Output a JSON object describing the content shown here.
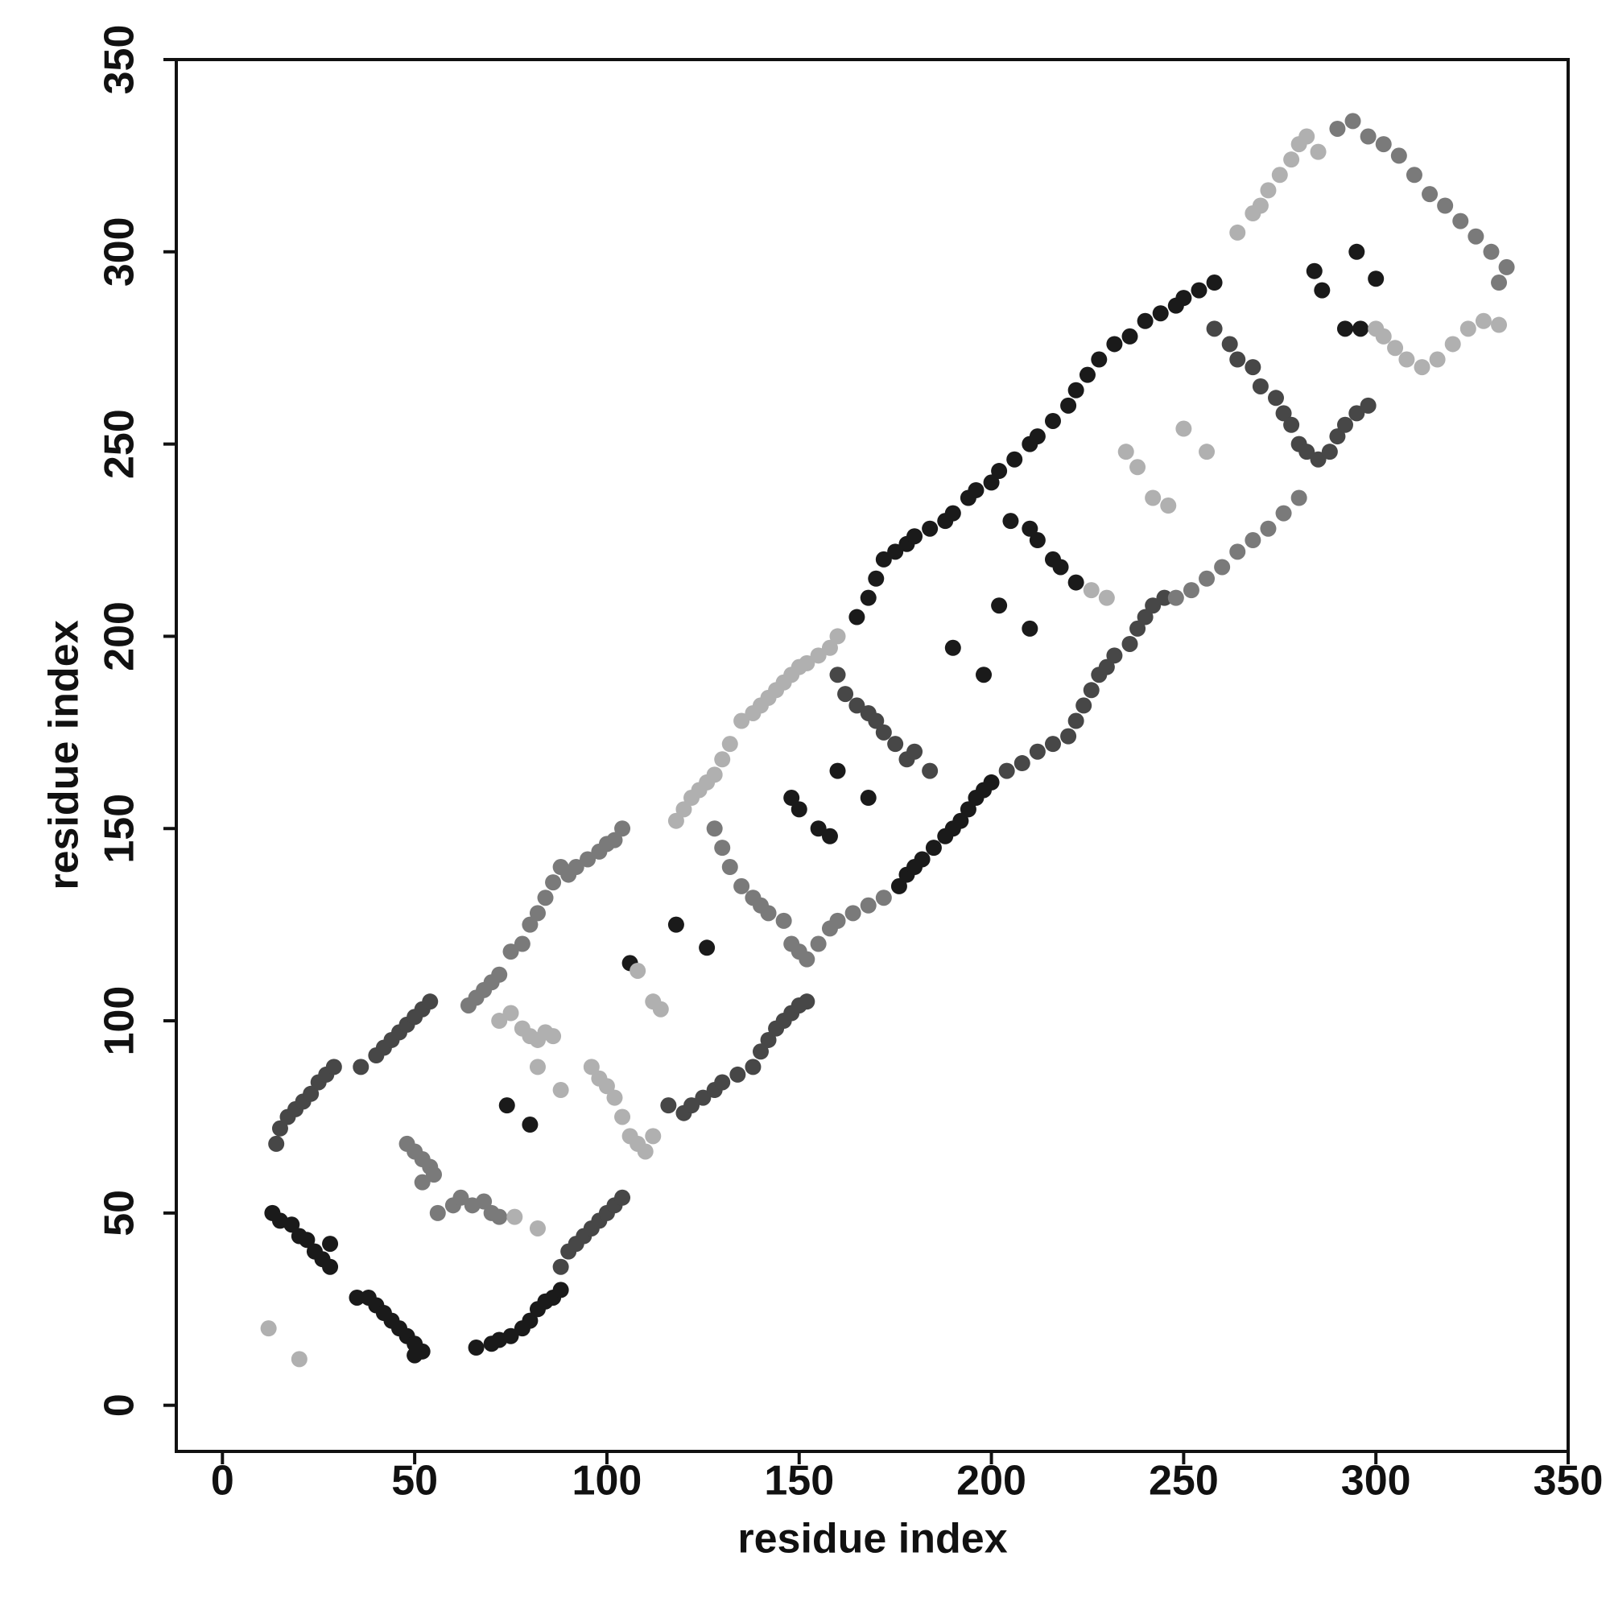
{
  "chart_data": {
    "type": "scatter",
    "xlabel": "residue index",
    "ylabel": "residue index",
    "xlim": [
      -12,
      350
    ],
    "ylim": [
      -12,
      350
    ],
    "xticks": [
      0,
      50,
      100,
      150,
      200,
      250,
      300,
      350
    ],
    "yticks": [
      0,
      50,
      100,
      150,
      200,
      250,
      300,
      350
    ],
    "series": [
      {
        "color": "#1a1a1a",
        "x": [
          13,
          15,
          18,
          20,
          22,
          24,
          26,
          28,
          28,
          35,
          38,
          40,
          42,
          44,
          46,
          48,
          50,
          52,
          50,
          66,
          70,
          72,
          75,
          78,
          80,
          82,
          84,
          86,
          88,
          74,
          80,
          106,
          118,
          126,
          148,
          150,
          155,
          158,
          160,
          168,
          190,
          198,
          202,
          210,
          284,
          286,
          295,
          300,
          292,
          296,
          205,
          210,
          212,
          216,
          218,
          222,
          176,
          178,
          180,
          182,
          185,
          188,
          190,
          192,
          194,
          196,
          198,
          200,
          165,
          168,
          170,
          172,
          175,
          178,
          180,
          184,
          188,
          190,
          194,
          196,
          200,
          202,
          206,
          210,
          212,
          216,
          220,
          222,
          225,
          228,
          232,
          236,
          240,
          244,
          248,
          250,
          254,
          258
        ],
        "values": [
          50,
          48,
          47,
          44,
          43,
          40,
          38,
          36,
          42,
          28,
          28,
          26,
          24,
          22,
          20,
          18,
          16,
          14,
          13,
          15,
          16,
          17,
          18,
          20,
          22,
          25,
          27,
          28,
          30,
          78,
          73,
          115,
          125,
          119,
          158,
          155,
          150,
          148,
          165,
          158,
          197,
          190,
          208,
          202,
          295,
          290,
          300,
          293,
          280,
          280,
          230,
          228,
          225,
          220,
          218,
          214,
          135,
          138,
          140,
          142,
          145,
          148,
          150,
          152,
          155,
          158,
          160,
          162,
          205,
          210,
          215,
          220,
          222,
          224,
          226,
          228,
          230,
          232,
          236,
          238,
          240,
          243,
          246,
          250,
          252,
          256,
          260,
          264,
          268,
          272,
          276,
          278,
          282,
          284,
          286,
          288,
          290,
          292
        ]
      },
      {
        "color": "#474747",
        "x": [
          14,
          15,
          17,
          19,
          21,
          23,
          25,
          27,
          29,
          36,
          40,
          42,
          44,
          46,
          48,
          50,
          52,
          54,
          88,
          90,
          92,
          94,
          96,
          98,
          100,
          102,
          104,
          116,
          120,
          122,
          125,
          128,
          130,
          134,
          138,
          140,
          142,
          144,
          146,
          148,
          150,
          152,
          160,
          162,
          165,
          168,
          170,
          172,
          175,
          178,
          180,
          184,
          258,
          262,
          264,
          268,
          270,
          274,
          276,
          278,
          280,
          282,
          285,
          288,
          290,
          292,
          295,
          298,
          204,
          208,
          212,
          216,
          220,
          222,
          224,
          226,
          228,
          230,
          232,
          236,
          238,
          240,
          242,
          245
        ],
        "values": [
          68,
          72,
          75,
          77,
          79,
          81,
          84,
          86,
          88,
          88,
          91,
          93,
          95,
          97,
          99,
          101,
          103,
          105,
          36,
          40,
          42,
          44,
          46,
          48,
          50,
          52,
          54,
          78,
          76,
          78,
          80,
          82,
          84,
          86,
          88,
          92,
          95,
          98,
          100,
          102,
          104,
          105,
          190,
          185,
          182,
          180,
          178,
          175,
          172,
          168,
          170,
          165,
          280,
          276,
          272,
          270,
          265,
          262,
          258,
          255,
          250,
          248,
          246,
          248,
          252,
          255,
          258,
          260,
          165,
          167,
          170,
          172,
          174,
          178,
          182,
          186,
          190,
          192,
          195,
          198,
          202,
          205,
          208,
          210
        ]
      },
      {
        "color": "#7a7a7a",
        "x": [
          48,
          50,
          52,
          54,
          52,
          55,
          56,
          60,
          62,
          65,
          68,
          70,
          72,
          64,
          66,
          68,
          70,
          72,
          75,
          78,
          80,
          82,
          84,
          86,
          88,
          90,
          92,
          95,
          98,
          100,
          102,
          104,
          128,
          130,
          132,
          135,
          138,
          140,
          142,
          146,
          148,
          150,
          152,
          155,
          158,
          160,
          164,
          168,
          172,
          248,
          252,
          256,
          260,
          264,
          268,
          272,
          276,
          280,
          290,
          294,
          298,
          302,
          306,
          310,
          314,
          318,
          322,
          326,
          330,
          334,
          332
        ],
        "values": [
          68,
          66,
          64,
          62,
          58,
          60,
          50,
          52,
          54,
          52,
          53,
          50,
          49,
          104,
          106,
          108,
          110,
          112,
          118,
          120,
          125,
          128,
          132,
          136,
          140,
          138,
          140,
          142,
          144,
          146,
          147,
          150,
          150,
          145,
          140,
          135,
          132,
          130,
          128,
          126,
          120,
          118,
          116,
          120,
          124,
          126,
          128,
          130,
          132,
          210,
          212,
          215,
          218,
          222,
          225,
          228,
          232,
          236,
          332,
          334,
          330,
          328,
          325,
          320,
          315,
          312,
          308,
          304,
          300,
          296,
          292
        ]
      },
      {
        "color": "#b0b0b0",
        "x": [
          12,
          20,
          72,
          75,
          78,
          80,
          82,
          84,
          86,
          82,
          88,
          82,
          76,
          96,
          98,
          100,
          102,
          104,
          106,
          108,
          110,
          112,
          108,
          112,
          114,
          118,
          120,
          122,
          124,
          126,
          128,
          130,
          132,
          135,
          138,
          140,
          142,
          144,
          146,
          148,
          150,
          152,
          155,
          158,
          160,
          235,
          238,
          242,
          246,
          250,
          256,
          264,
          268,
          270,
          272,
          275,
          278,
          280,
          282,
          285,
          300,
          302,
          305,
          308,
          312,
          316,
          320,
          324,
          328,
          332,
          226,
          230
        ],
        "values": [
          20,
          12,
          100,
          102,
          98,
          96,
          95,
          97,
          96,
          88,
          82,
          46,
          49,
          88,
          85,
          83,
          80,
          75,
          70,
          68,
          66,
          70,
          113,
          105,
          103,
          152,
          155,
          158,
          160,
          162,
          164,
          168,
          172,
          178,
          180,
          182,
          184,
          186,
          188,
          190,
          192,
          193,
          195,
          197,
          200,
          248,
          244,
          236,
          234,
          254,
          248,
          305,
          310,
          312,
          316,
          320,
          324,
          328,
          330,
          326,
          280,
          278,
          275,
          272,
          270,
          272,
          276,
          280,
          282,
          281,
          212,
          210
        ]
      }
    ]
  }
}
